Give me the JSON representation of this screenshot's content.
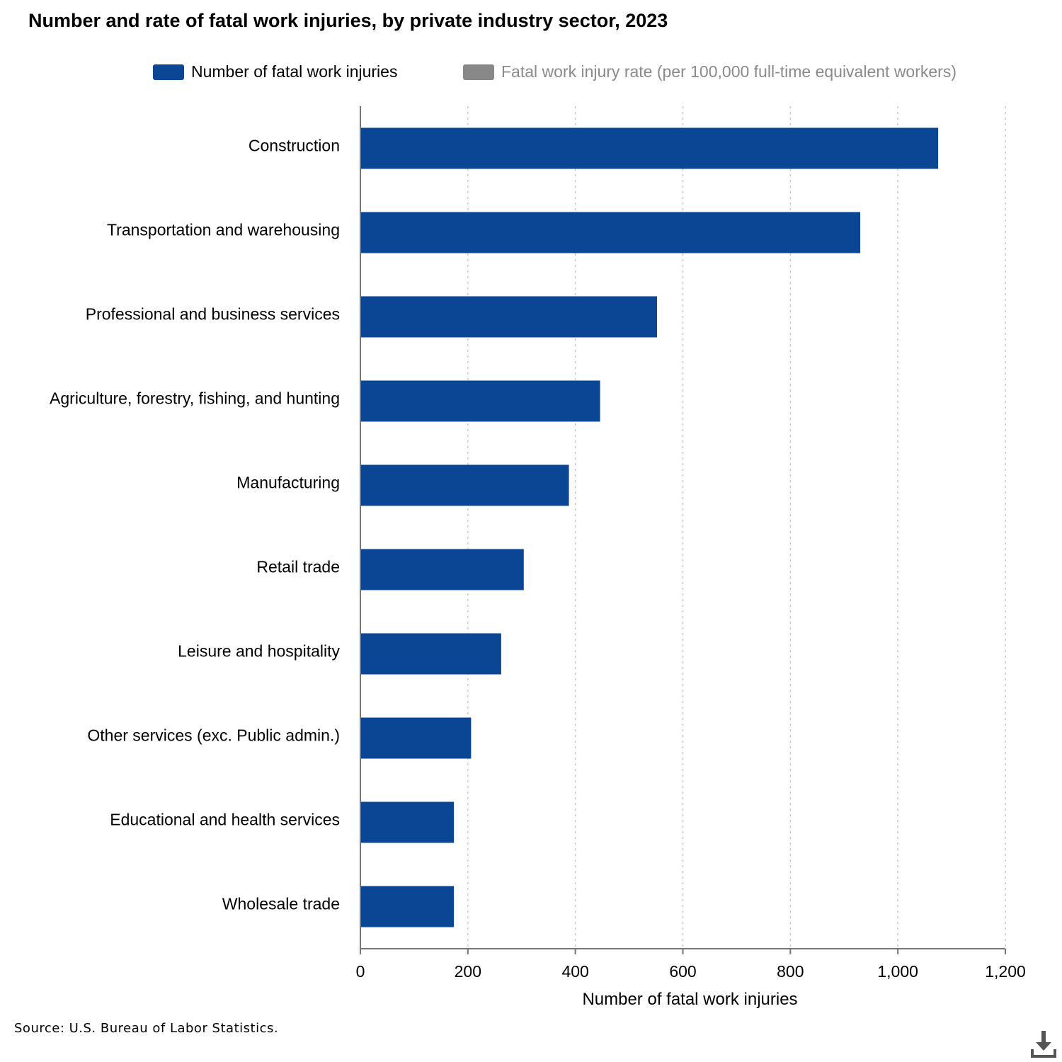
{
  "title": "Number and rate of fatal work injuries, by private industry sector, 2023",
  "legend": [
    {
      "label": "Number of fatal work injuries",
      "color": "#0b4694",
      "active": true
    },
    {
      "label": "Fatal work injury rate (per 100,000 full-time equivalent workers)",
      "color": "#888888",
      "active": false
    }
  ],
  "chart_data": {
    "type": "bar",
    "orientation": "horizontal",
    "title": "Number and rate of fatal work injuries, by private industry sector, 2023",
    "categories": [
      "Construction",
      "Transportation and warehousing",
      "Professional and business services",
      "Agriculture, forestry, fishing, and hunting",
      "Manufacturing",
      "Retail trade",
      "Leisure and hospitality",
      "Other services (exc. Public admin.)",
      "Educational and health services",
      "Wholesale trade"
    ],
    "series": [
      {
        "name": "Number of fatal work injuries",
        "color": "#0b4694",
        "values": [
          1075,
          930,
          552,
          446,
          388,
          304,
          262,
          206,
          174,
          174
        ]
      }
    ],
    "xlabel": "Number of fatal work injuries",
    "ylabel": "",
    "xlim": [
      0,
      1200
    ],
    "xticks": [
      0,
      200,
      400,
      600,
      800,
      1000,
      1200
    ],
    "xtick_labels": [
      "0",
      "200",
      "400",
      "600",
      "800",
      "1,000",
      "1,200"
    ],
    "grid": true,
    "legend_position": "top"
  },
  "source": "Source: U.S. Bureau of Labor Statistics.",
  "download_icon": "download-icon"
}
